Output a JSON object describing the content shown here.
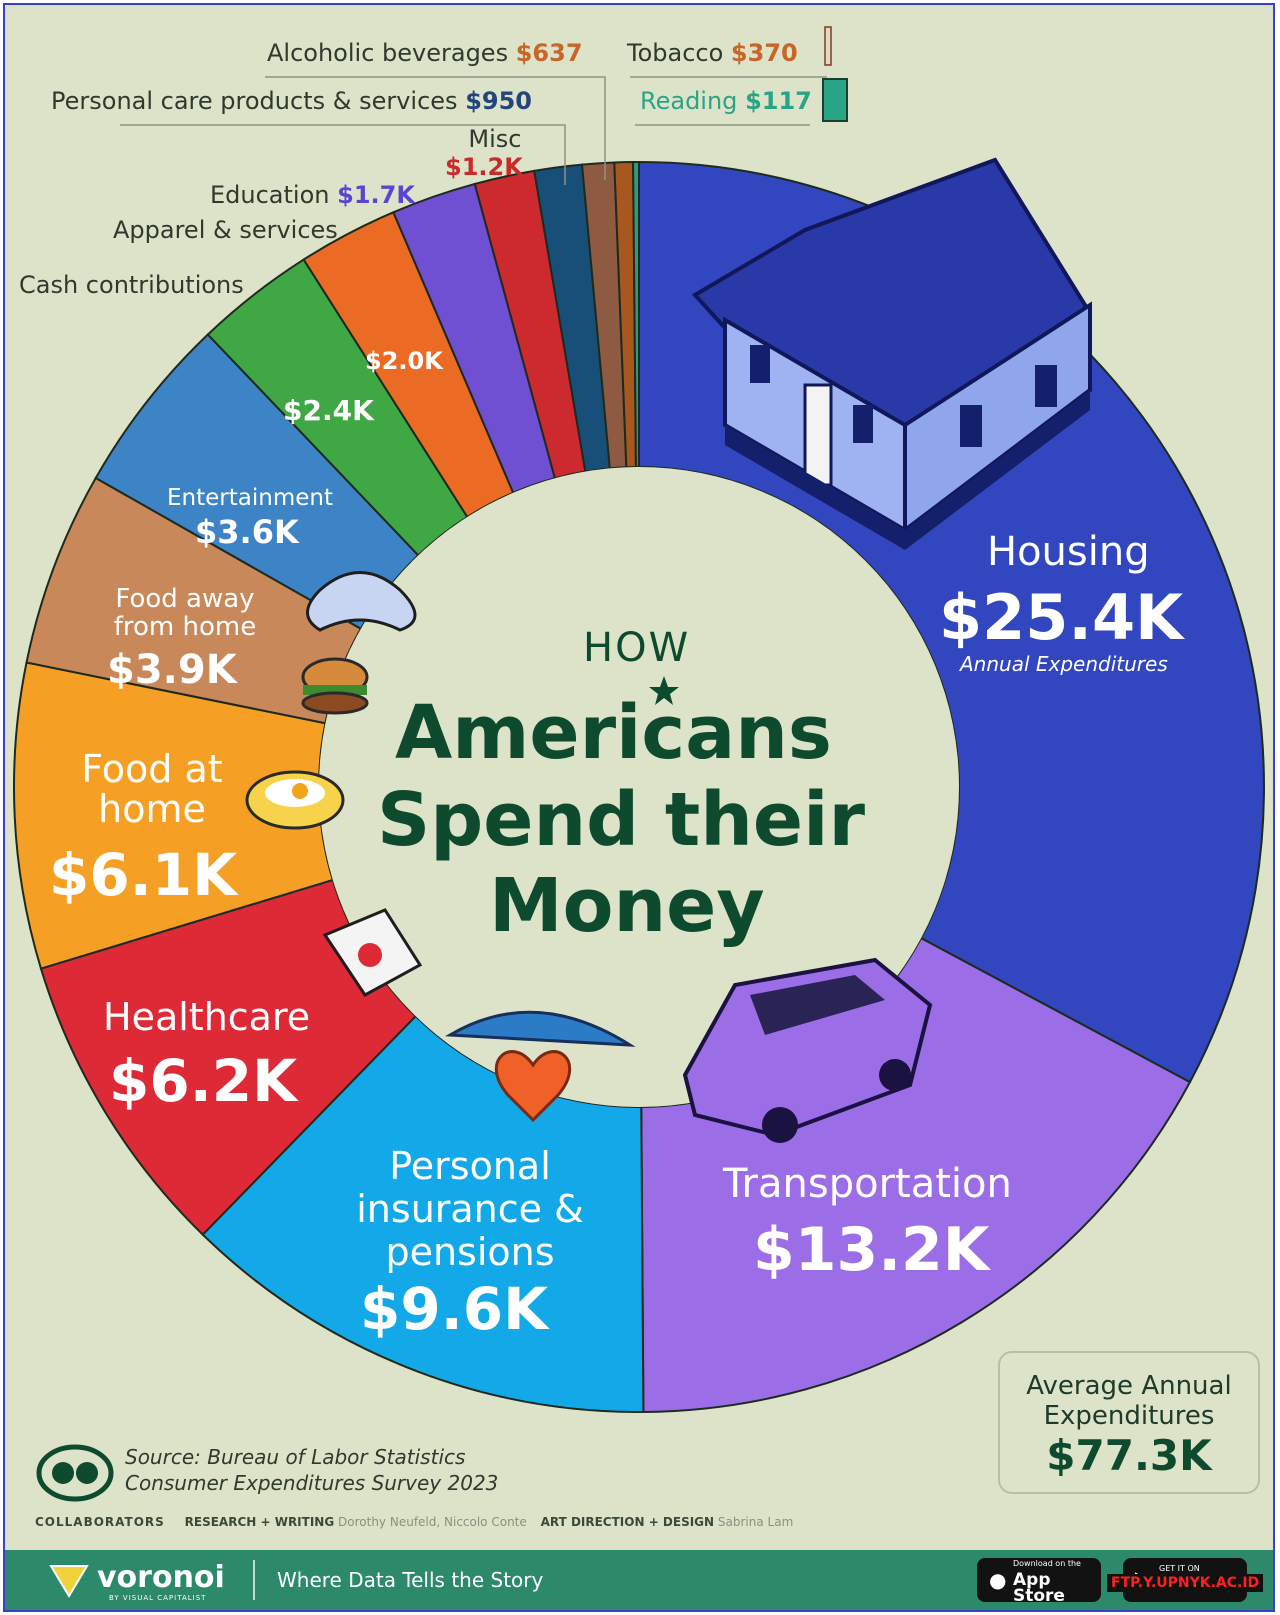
{
  "title": {
    "line1": "HOW",
    "line2": "Americans",
    "line3": "Spend their",
    "line4": "Money"
  },
  "housing_note": "Annual Expenditures",
  "chart_data": {
    "type": "donut",
    "title": "HOW Americans Spend their Money",
    "unit": "USD (annual)",
    "categories": [
      "Housing",
      "Transportation",
      "Personal insurance & pensions",
      "Healthcare",
      "Food at home",
      "Food away from home",
      "Entertainment",
      "Cash contributions",
      "Apparel & services",
      "Education",
      "Misc",
      "Personal care products & services",
      "Alcoholic beverages",
      "Tobacco",
      "Reading"
    ],
    "values": [
      25400,
      13200,
      9600,
      6200,
      6100,
      3900,
      3600,
      2400,
      2000,
      1700,
      1200,
      950,
      637,
      370,
      117
    ],
    "labels": [
      "$25.4K",
      "$13.2K",
      "$9.6K",
      "$6.2K",
      "$6.1K",
      "$3.9K",
      "$3.6K",
      "$2.4K",
      "$2.0K",
      "$1.7K",
      "$1.2K",
      "$950",
      "$637",
      "$370",
      "$117"
    ],
    "colors": [
      "#3146bf",
      "#9b6ee8",
      "#13a9e8",
      "#de2a36",
      "#f5a024",
      "#c8885a",
      "#3d84c6",
      "#3fa845",
      "#ec6b24",
      "#6f4fd2",
      "#cc2a2f",
      "#174f78",
      "#8e5b42",
      "#a8581f",
      "#2c9b80"
    ],
    "label_colors": [
      "#ffffff",
      "#ffffff",
      "#ffffff",
      "#ffffff",
      "#ffffff",
      "#ffffff",
      "#ffffff",
      "#ffffff",
      "#ffffff",
      "#5a45d0",
      "#c92a2a",
      "#23457c",
      "#c8662a",
      "#c8662a",
      "#2aa487"
    ]
  },
  "total": {
    "label_line1": "Average Annual",
    "label_line2": "Expenditures",
    "value": "$77.3K"
  },
  "source": {
    "line1": "Source: Bureau of Labor Statistics",
    "line2": "Consumer Expenditures Survey 2023"
  },
  "credits": {
    "heading": "COLLABORATORS",
    "research_label": "RESEARCH + WRITING",
    "research_names": "Dorothy Neufeld, Niccolo Conte",
    "design_label": "ART DIRECTION + DESIGN",
    "design_names": "Sabrina Lam"
  },
  "footer": {
    "brand": "voronoi",
    "brand_sub": "BY VISUAL CAPITALIST",
    "tagline": "Where Data Tells the Story",
    "appstore_small": "Download on the",
    "appstore": "App Store",
    "googleplay_small": "GET IT ON",
    "watermark": "FTP.Y.UPNYK.AC.ID"
  },
  "colors": {
    "background": "#dde3c8",
    "title_green": "#0e4a2e",
    "footer_green": "#2c8a6a"
  }
}
